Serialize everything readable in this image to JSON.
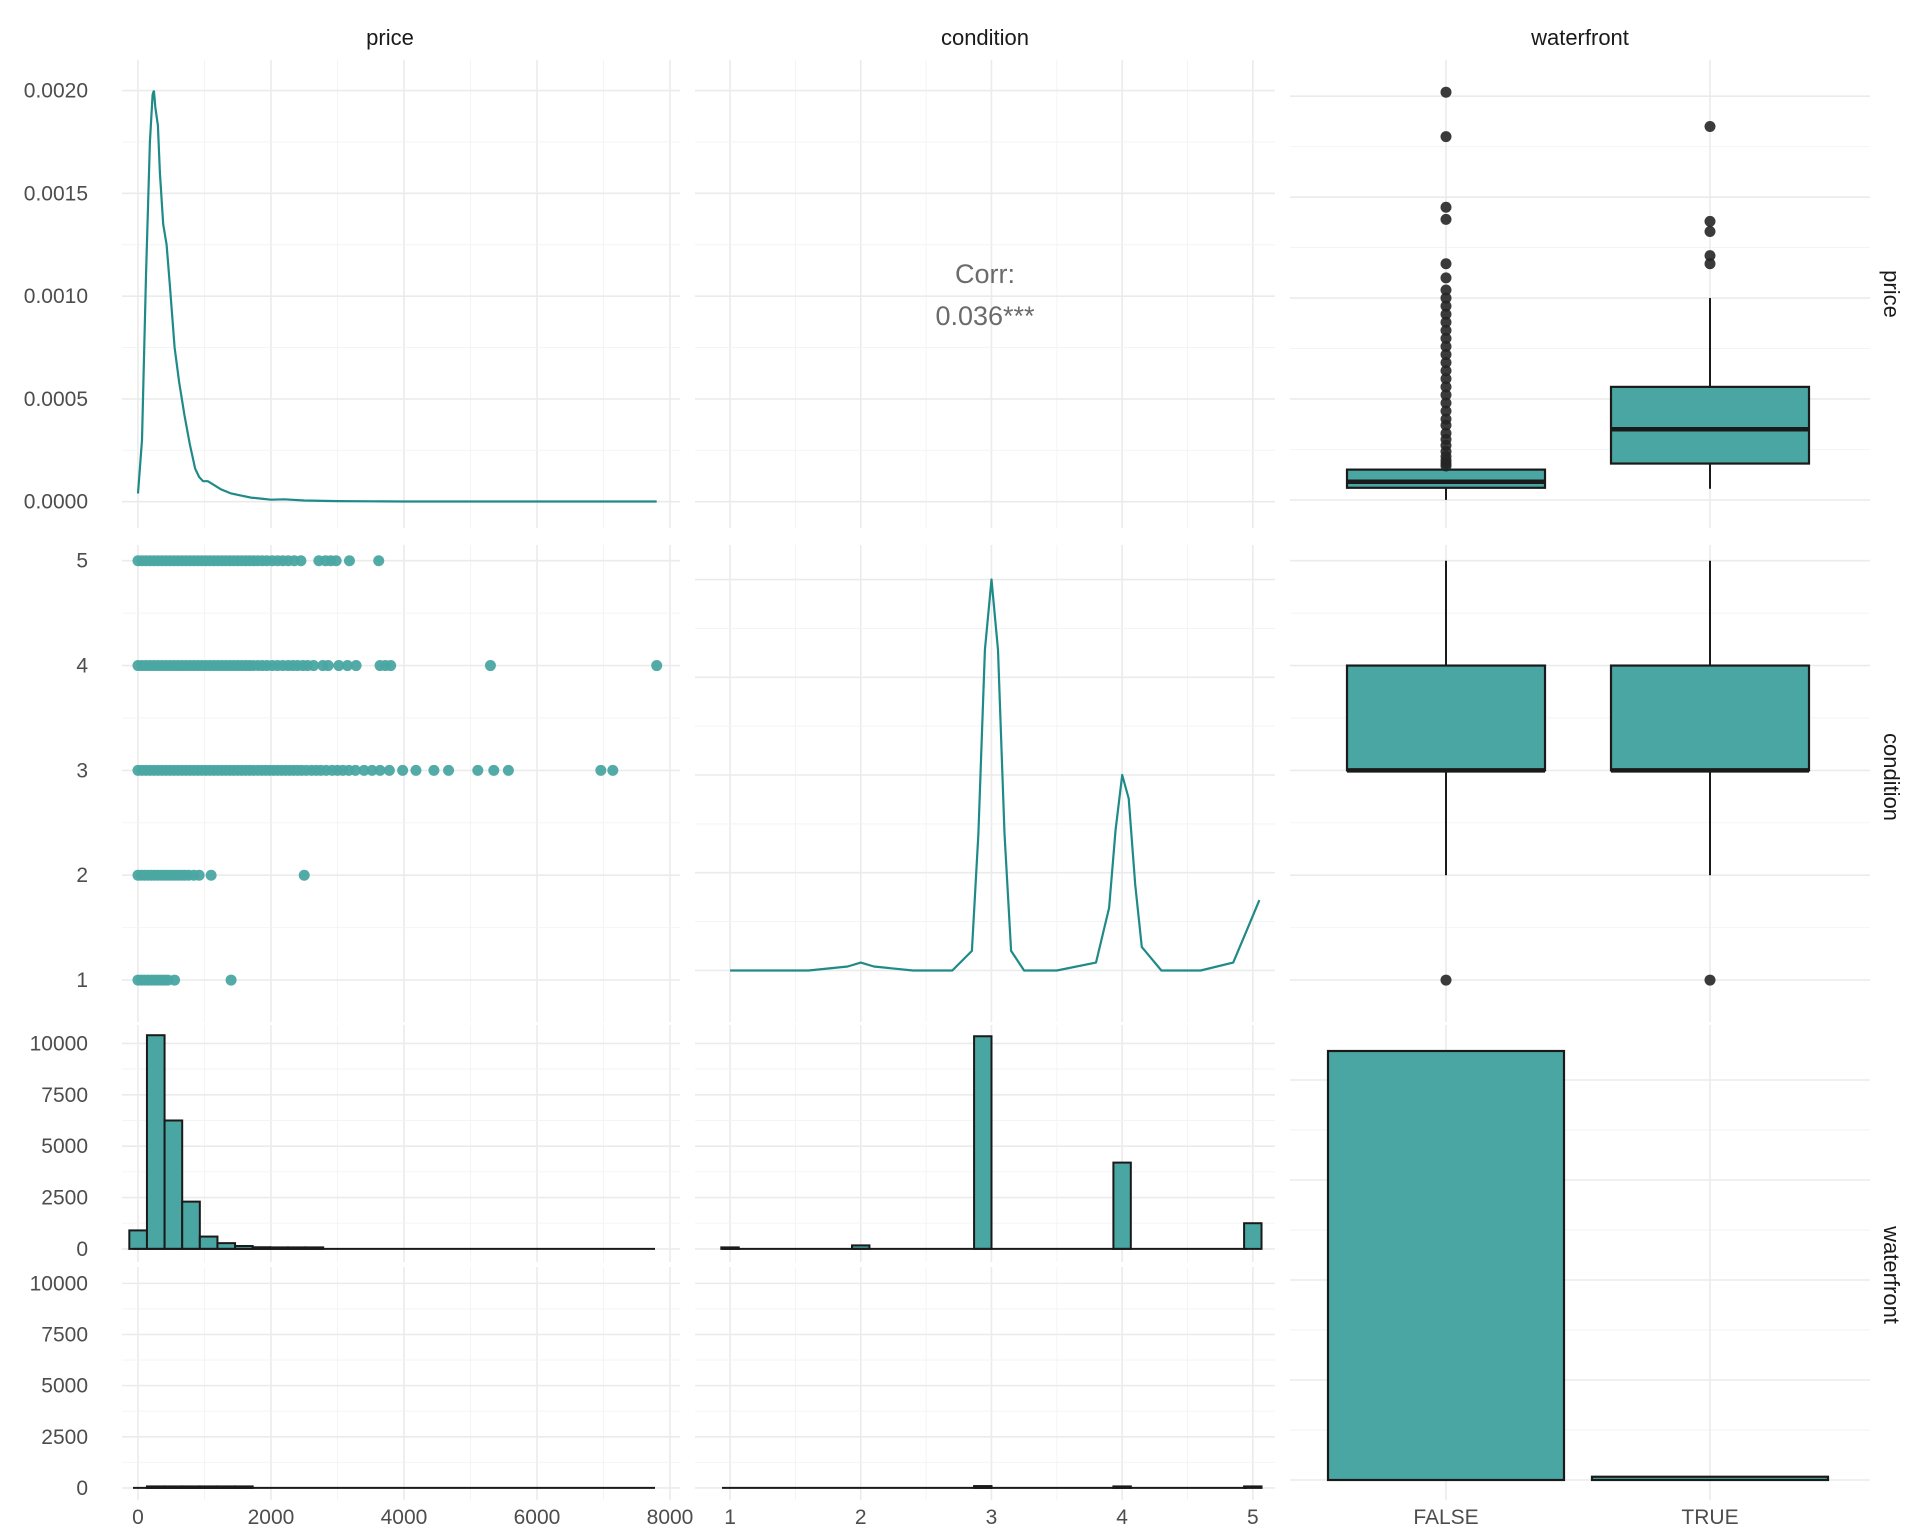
{
  "colors": {
    "accent": "#1f8a87",
    "fill": "#4aa6a2",
    "outline": "#1a1a1a",
    "outlier": "#262626"
  },
  "variables": [
    "price",
    "condition",
    "waterfront"
  ],
  "corr": {
    "label": "Corr:",
    "value": "0.036***"
  },
  "chart_data": [
    {
      "type": "line",
      "panel": "price-density",
      "row": "price",
      "col": "price",
      "x_label": "price",
      "y_ticks": [
        "0.0000",
        "0.0005",
        "0.0010",
        "0.0015",
        "0.0020"
      ],
      "y_tick_values": [
        0,
        0.0005,
        0.001,
        0.0015,
        0.002
      ],
      "xlim": [
        -150,
        8000
      ],
      "ylim": [
        -5e-05,
        0.0021
      ],
      "x": [
        0,
        60,
        120,
        180,
        220,
        240,
        260,
        300,
        330,
        380,
        430,
        480,
        550,
        620,
        700,
        780,
        860,
        920,
        980,
        1050,
        1150,
        1250,
        1400,
        1550,
        1700,
        1850,
        2000,
        2200,
        2500,
        3000,
        3500,
        4000,
        5000,
        6000,
        7000,
        7800
      ],
      "y": [
        4e-05,
        0.0003,
        0.0011,
        0.00175,
        0.00198,
        0.002,
        0.00192,
        0.00183,
        0.0016,
        0.00135,
        0.00125,
        0.00105,
        0.00075,
        0.00058,
        0.00042,
        0.00028,
        0.00016,
        0.00012,
        0.0001,
        0.0001,
        8e-05,
        6e-05,
        4e-05,
        3e-05,
        2e-05,
        1.5e-05,
        1e-05,
        1.2e-05,
        6e-06,
        3e-06,
        2e-06,
        1e-06,
        1e-06,
        1e-06,
        1e-06,
        1e-06
      ]
    },
    {
      "type": "text",
      "panel": "corr",
      "row": "price",
      "col": "condition",
      "label": "Corr:",
      "value": "0.036***",
      "x_ticks": [
        "1",
        "2",
        "3",
        "4",
        "5"
      ]
    },
    {
      "type": "boxplot",
      "panel": "price-by-waterfront",
      "row": "price",
      "col": "waterfront",
      "categories": [
        "FALSE",
        "TRUE"
      ],
      "ylim": [
        -60,
        2130
      ],
      "boxes": [
        {
          "category": "FALSE",
          "lower_whisker": 0,
          "q1": 60,
          "median": 90,
          "q3": 150,
          "upper_whisker": 150,
          "outliers": [
            2020,
            1800,
            1450,
            1390,
            1170,
            1100,
            1040,
            1000,
            960,
            920,
            880,
            840,
            800,
            760,
            720,
            680,
            640,
            600,
            560,
            520,
            480,
            440,
            400,
            370,
            330,
            300,
            270,
            240,
            215,
            195,
            180,
            168
          ]
        },
        {
          "category": "TRUE",
          "lower_whisker": 55,
          "q1": 180,
          "median": 350,
          "q3": 560,
          "upper_whisker": 1000,
          "outliers": [
            1850,
            1380,
            1330,
            1210,
            1170
          ]
        }
      ]
    },
    {
      "type": "scatter",
      "panel": "condition-vs-price",
      "row": "condition",
      "col": "price",
      "y_ticks": [
        "1",
        "2",
        "3",
        "4",
        "5"
      ],
      "xlim": [
        -150,
        8000
      ],
      "ylim": [
        0.6,
        5.15
      ],
      "points": [
        [
          0,
          5
        ],
        [
          60,
          5
        ],
        [
          120,
          5
        ],
        [
          180,
          5
        ],
        [
          240,
          5
        ],
        [
          300,
          5
        ],
        [
          360,
          5
        ],
        [
          420,
          5
        ],
        [
          480,
          5
        ],
        [
          540,
          5
        ],
        [
          600,
          5
        ],
        [
          660,
          5
        ],
        [
          720,
          5
        ],
        [
          780,
          5
        ],
        [
          840,
          5
        ],
        [
          900,
          5
        ],
        [
          960,
          5
        ],
        [
          1020,
          5
        ],
        [
          1080,
          5
        ],
        [
          1140,
          5
        ],
        [
          1200,
          5
        ],
        [
          1260,
          5
        ],
        [
          1320,
          5
        ],
        [
          1380,
          5
        ],
        [
          1440,
          5
        ],
        [
          1500,
          5
        ],
        [
          1560,
          5
        ],
        [
          1620,
          5
        ],
        [
          1680,
          5
        ],
        [
          1740,
          5
        ],
        [
          1800,
          5
        ],
        [
          1870,
          5
        ],
        [
          1940,
          5
        ],
        [
          2020,
          5
        ],
        [
          2100,
          5
        ],
        [
          2180,
          5
        ],
        [
          2260,
          5
        ],
        [
          2350,
          5
        ],
        [
          2450,
          5
        ],
        [
          2720,
          5
        ],
        [
          2820,
          5
        ],
        [
          2900,
          5
        ],
        [
          2980,
          5
        ],
        [
          3180,
          5
        ],
        [
          3620,
          5
        ],
        [
          0,
          4
        ],
        [
          60,
          4
        ],
        [
          120,
          4
        ],
        [
          180,
          4
        ],
        [
          240,
          4
        ],
        [
          300,
          4
        ],
        [
          360,
          4
        ],
        [
          420,
          4
        ],
        [
          480,
          4
        ],
        [
          540,
          4
        ],
        [
          600,
          4
        ],
        [
          660,
          4
        ],
        [
          720,
          4
        ],
        [
          780,
          4
        ],
        [
          840,
          4
        ],
        [
          900,
          4
        ],
        [
          960,
          4
        ],
        [
          1020,
          4
        ],
        [
          1080,
          4
        ],
        [
          1140,
          4
        ],
        [
          1200,
          4
        ],
        [
          1260,
          4
        ],
        [
          1320,
          4
        ],
        [
          1380,
          4
        ],
        [
          1440,
          4
        ],
        [
          1500,
          4
        ],
        [
          1560,
          4
        ],
        [
          1620,
          4
        ],
        [
          1680,
          4
        ],
        [
          1740,
          4
        ],
        [
          1800,
          4
        ],
        [
          1870,
          4
        ],
        [
          1940,
          4
        ],
        [
          2020,
          4
        ],
        [
          2100,
          4
        ],
        [
          2180,
          4
        ],
        [
          2260,
          4
        ],
        [
          2330,
          4
        ],
        [
          2400,
          4
        ],
        [
          2480,
          4
        ],
        [
          2550,
          4
        ],
        [
          2640,
          4
        ],
        [
          2780,
          4
        ],
        [
          2860,
          4
        ],
        [
          3020,
          4
        ],
        [
          3150,
          4
        ],
        [
          3280,
          4
        ],
        [
          3640,
          4
        ],
        [
          3720,
          4
        ],
        [
          3800,
          4
        ],
        [
          5300,
          4
        ],
        [
          7800,
          4
        ],
        [
          0,
          3
        ],
        [
          60,
          3
        ],
        [
          120,
          3
        ],
        [
          180,
          3
        ],
        [
          240,
          3
        ],
        [
          300,
          3
        ],
        [
          360,
          3
        ],
        [
          420,
          3
        ],
        [
          480,
          3
        ],
        [
          540,
          3
        ],
        [
          600,
          3
        ],
        [
          660,
          3
        ],
        [
          720,
          3
        ],
        [
          780,
          3
        ],
        [
          840,
          3
        ],
        [
          900,
          3
        ],
        [
          960,
          3
        ],
        [
          1020,
          3
        ],
        [
          1080,
          3
        ],
        [
          1140,
          3
        ],
        [
          1200,
          3
        ],
        [
          1260,
          3
        ],
        [
          1320,
          3
        ],
        [
          1380,
          3
        ],
        [
          1440,
          3
        ],
        [
          1500,
          3
        ],
        [
          1560,
          3
        ],
        [
          1620,
          3
        ],
        [
          1680,
          3
        ],
        [
          1740,
          3
        ],
        [
          1800,
          3
        ],
        [
          1860,
          3
        ],
        [
          1920,
          3
        ],
        [
          1980,
          3
        ],
        [
          2040,
          3
        ],
        [
          2100,
          3
        ],
        [
          2160,
          3
        ],
        [
          2220,
          3
        ],
        [
          2280,
          3
        ],
        [
          2340,
          3
        ],
        [
          2400,
          3
        ],
        [
          2460,
          3
        ],
        [
          2530,
          3
        ],
        [
          2610,
          3
        ],
        [
          2680,
          3
        ],
        [
          2750,
          3
        ],
        [
          2830,
          3
        ],
        [
          2920,
          3
        ],
        [
          3000,
          3
        ],
        [
          3080,
          3
        ],
        [
          3170,
          3
        ],
        [
          3270,
          3
        ],
        [
          3400,
          3
        ],
        [
          3520,
          3
        ],
        [
          3640,
          3
        ],
        [
          3780,
          3
        ],
        [
          3980,
          3
        ],
        [
          4180,
          3
        ],
        [
          4450,
          3
        ],
        [
          4670,
          3
        ],
        [
          5110,
          3
        ],
        [
          5350,
          3
        ],
        [
          5570,
          3
        ],
        [
          6960,
          3
        ],
        [
          7140,
          3
        ],
        [
          0,
          2
        ],
        [
          50,
          2
        ],
        [
          100,
          2
        ],
        [
          150,
          2
        ],
        [
          200,
          2
        ],
        [
          250,
          2
        ],
        [
          300,
          2
        ],
        [
          350,
          2
        ],
        [
          400,
          2
        ],
        [
          450,
          2
        ],
        [
          500,
          2
        ],
        [
          550,
          2
        ],
        [
          600,
          2
        ],
        [
          650,
          2
        ],
        [
          700,
          2
        ],
        [
          760,
          2
        ],
        [
          840,
          2
        ],
        [
          920,
          2
        ],
        [
          1100,
          2
        ],
        [
          2500,
          2
        ],
        [
          0,
          1
        ],
        [
          50,
          1
        ],
        [
          100,
          1
        ],
        [
          150,
          1
        ],
        [
          200,
          1
        ],
        [
          250,
          1
        ],
        [
          300,
          1
        ],
        [
          350,
          1
        ],
        [
          400,
          1
        ],
        [
          450,
          1
        ],
        [
          550,
          1
        ],
        [
          1400,
          1
        ]
      ]
    },
    {
      "type": "line",
      "panel": "condition-density",
      "row": "condition",
      "col": "condition",
      "xlim": [
        0.9,
        5.07
      ],
      "ylim": [
        -0.05,
        1.05
      ],
      "x": [
        1,
        1.3,
        1.6,
        1.9,
        2.0,
        2.1,
        2.4,
        2.7,
        2.85,
        2.9,
        2.95,
        3.0,
        3.05,
        3.1,
        3.15,
        3.25,
        3.5,
        3.8,
        3.9,
        3.95,
        4.0,
        4.05,
        4.1,
        4.15,
        4.3,
        4.6,
        4.85,
        4.95,
        5.05
      ],
      "y": [
        0,
        0,
        0,
        0.01,
        0.02,
        0.01,
        0,
        0,
        0.05,
        0.35,
        0.82,
        1.0,
        0.82,
        0.35,
        0.05,
        0,
        0,
        0.02,
        0.16,
        0.36,
        0.5,
        0.44,
        0.22,
        0.06,
        0,
        0,
        0.02,
        0.1,
        0.18
      ]
    },
    {
      "type": "boxplot",
      "panel": "condition-by-waterfront",
      "row": "condition",
      "col": "waterfront",
      "categories": [
        "FALSE",
        "TRUE"
      ],
      "ylim": [
        0.6,
        5.15
      ],
      "boxes": [
        {
          "category": "FALSE",
          "lower_whisker": 2,
          "q1": 3,
          "median": 3,
          "q3": 4,
          "upper_whisker": 5,
          "outliers": [
            1
          ]
        },
        {
          "category": "TRUE",
          "lower_whisker": 2,
          "q1": 3,
          "median": 3,
          "q3": 4,
          "upper_whisker": 5,
          "outliers": [
            1
          ]
        }
      ]
    },
    {
      "type": "bar",
      "panel": "price-histogram-waterfront-false",
      "row": "waterfront",
      "col": "price",
      "facet": "FALSE",
      "y_ticks": [
        "0",
        "2500",
        "5000",
        "7500",
        "10000"
      ],
      "y_tick_values": [
        0,
        2500,
        5000,
        7500,
        10000
      ],
      "xlim": [
        -150,
        8000
      ],
      "ylim": [
        -200,
        10800
      ],
      "binwidth": 265,
      "bin_starts": [
        -130,
        135,
        400,
        665,
        930,
        1195,
        1460,
        1725,
        1990,
        2255,
        2520
      ],
      "values": [
        900,
        10400,
        6250,
        2300,
        600,
        280,
        140,
        80,
        40,
        20,
        10
      ]
    },
    {
      "type": "bar",
      "panel": "price-histogram-waterfront-true",
      "row": "waterfront",
      "col": "price",
      "facet": "TRUE",
      "y_ticks": [
        "0",
        "2500",
        "5000",
        "7500",
        "10000"
      ],
      "y_tick_values": [
        0,
        2500,
        5000,
        7500,
        10000
      ],
      "x_ticks": [
        "0",
        "2000",
        "4000",
        "6000",
        "8000"
      ],
      "x_tick_values": [
        0,
        2000,
        4000,
        6000,
        8000
      ],
      "xlim": [
        -150,
        8000
      ],
      "ylim": [
        -200,
        10800
      ],
      "binwidth": 265,
      "bin_starts": [
        135,
        400,
        665,
        930,
        1195,
        1460
      ],
      "values": [
        20,
        40,
        30,
        20,
        15,
        10
      ]
    },
    {
      "type": "bar",
      "panel": "condition-histogram-waterfront-false",
      "row": "waterfront",
      "col": "condition",
      "facet": "FALSE",
      "xlim": [
        0.9,
        5.07
      ],
      "ylim": [
        -200,
        10800
      ],
      "binwidth": 0.1333,
      "bin_starts": [
        0.933,
        1.933,
        2.867,
        3.933,
        4.933
      ],
      "values": [
        30,
        170,
        10350,
        4200,
        1250
      ]
    },
    {
      "type": "bar",
      "panel": "condition-histogram-waterfront-true",
      "row": "waterfront",
      "col": "condition",
      "facet": "TRUE",
      "x_ticks": [
        "1",
        "2",
        "3",
        "4",
        "5"
      ],
      "x_tick_values": [
        1,
        2,
        3,
        4,
        5
      ],
      "xlim": [
        0.9,
        5.07
      ],
      "ylim": [
        -200,
        10800
      ],
      "binwidth": 0.1333,
      "bin_starts": [
        2.867,
        3.933,
        4.933
      ],
      "values": [
        90,
        45,
        15
      ]
    },
    {
      "type": "bar",
      "panel": "waterfront-count",
      "row": "waterfront",
      "col": "waterfront",
      "categories": [
        "FALSE",
        "TRUE"
      ],
      "values": [
        21450,
        163
      ],
      "ylim": [
        0,
        22500
      ]
    }
  ]
}
